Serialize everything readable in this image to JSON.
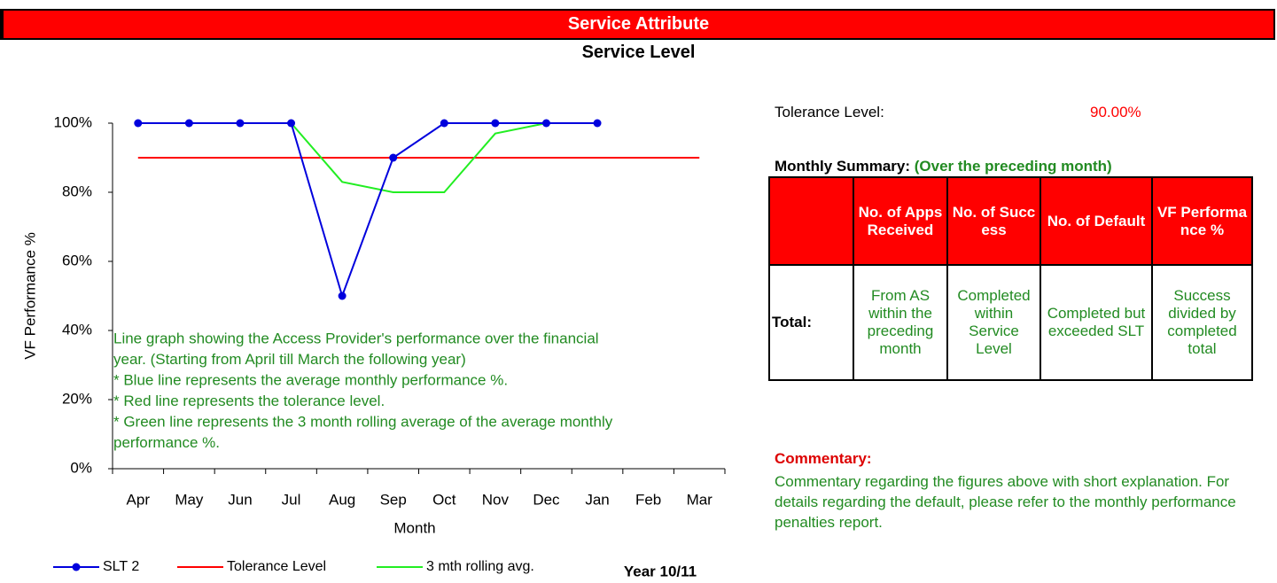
{
  "header": {
    "title": "Service Attribute",
    "subtitle": "Service Level"
  },
  "chart_data": {
    "type": "line",
    "y_label": "VF Performance %",
    "x_label": "Month",
    "categories": [
      "Apr",
      "May",
      "Jun",
      "Jul",
      "Aug",
      "Sep",
      "Oct",
      "Nov",
      "Dec",
      "Jan",
      "Feb",
      "Mar"
    ],
    "series": [
      {
        "name": "SLT 2",
        "color": "#0000dd",
        "marker": true,
        "values": [
          100,
          100,
          100,
          100,
          50,
          90,
          100,
          100,
          100,
          100,
          null,
          null
        ]
      },
      {
        "name": "Tolerance Level",
        "color": "#ff0000",
        "marker": false,
        "values": [
          90,
          90,
          90,
          90,
          90,
          90,
          90,
          90,
          90,
          90,
          90,
          90
        ]
      },
      {
        "name": "3 mth rolling avg.",
        "color": "#22ee22",
        "marker": false,
        "values": [
          100,
          100,
          100,
          100,
          83,
          80,
          80,
          97,
          100,
          100,
          null,
          null
        ]
      }
    ],
    "ylim": [
      0,
      100
    ],
    "yticks": [
      {
        "value": 0,
        "label": "0%"
      },
      {
        "value": 20,
        "label": "20%"
      },
      {
        "value": 40,
        "label": "40%"
      },
      {
        "value": 60,
        "label": "60%"
      },
      {
        "value": 80,
        "label": "80%"
      },
      {
        "value": 100,
        "label": "100%"
      }
    ],
    "annotation": [
      "Line graph showing the Access Provider's performance over the financial",
      "year. (Starting from April till March the following year)",
      "* Blue line represents the average monthly performance %.",
      "* Red line represents the tolerance level.",
      "* Green line represents the 3 month rolling average of the average monthly",
      "performance %."
    ],
    "note": "Year 10/11"
  },
  "sidebar": {
    "tolerance_label": "Tolerance Level:",
    "tolerance_value": "90.00%",
    "summary_title": "Monthly Summary:",
    "summary_subtitle": "(Over the preceding month)",
    "table": {
      "header": [
        "",
        "No. of Apps Received",
        "No. of Success",
        "No. of Default",
        "VF Performance %"
      ],
      "rows": [
        [
          "Total:",
          "From AS within the preceding month",
          "Completed within Service Level",
          "Completed but exceeded SLT",
          "Success divided by completed total"
        ]
      ]
    },
    "commentary_title": "Commentary:",
    "commentary": "Commentary regarding the figures above with short explanation. For details regarding the default, please refer to the monthly performance penalties report."
  }
}
